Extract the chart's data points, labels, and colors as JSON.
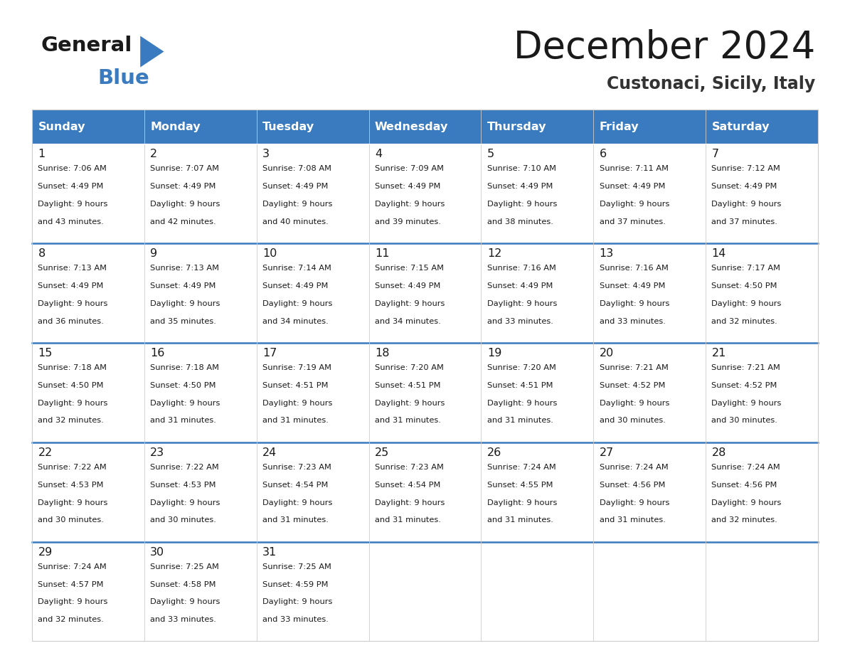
{
  "title": "December 2024",
  "subtitle": "Custonaci, Sicily, Italy",
  "header_color": "#3a7bbf",
  "header_text_color": "#ffffff",
  "cell_bg": "#ffffff",
  "cell_bg_alt": "#f5f7fa",
  "separator_color": "#3a7bbf",
  "grid_color": "#cccccc",
  "days_of_week": [
    "Sunday",
    "Monday",
    "Tuesday",
    "Wednesday",
    "Thursday",
    "Friday",
    "Saturday"
  ],
  "calendar_data": [
    [
      {
        "day": 1,
        "sunrise": "7:06 AM",
        "sunset": "4:49 PM",
        "daylight_hours": 9,
        "daylight_minutes": 43
      },
      {
        "day": 2,
        "sunrise": "7:07 AM",
        "sunset": "4:49 PM",
        "daylight_hours": 9,
        "daylight_minutes": 42
      },
      {
        "day": 3,
        "sunrise": "7:08 AM",
        "sunset": "4:49 PM",
        "daylight_hours": 9,
        "daylight_minutes": 40
      },
      {
        "day": 4,
        "sunrise": "7:09 AM",
        "sunset": "4:49 PM",
        "daylight_hours": 9,
        "daylight_minutes": 39
      },
      {
        "day": 5,
        "sunrise": "7:10 AM",
        "sunset": "4:49 PM",
        "daylight_hours": 9,
        "daylight_minutes": 38
      },
      {
        "day": 6,
        "sunrise": "7:11 AM",
        "sunset": "4:49 PM",
        "daylight_hours": 9,
        "daylight_minutes": 37
      },
      {
        "day": 7,
        "sunrise": "7:12 AM",
        "sunset": "4:49 PM",
        "daylight_hours": 9,
        "daylight_minutes": 37
      }
    ],
    [
      {
        "day": 8,
        "sunrise": "7:13 AM",
        "sunset": "4:49 PM",
        "daylight_hours": 9,
        "daylight_minutes": 36
      },
      {
        "day": 9,
        "sunrise": "7:13 AM",
        "sunset": "4:49 PM",
        "daylight_hours": 9,
        "daylight_minutes": 35
      },
      {
        "day": 10,
        "sunrise": "7:14 AM",
        "sunset": "4:49 PM",
        "daylight_hours": 9,
        "daylight_minutes": 34
      },
      {
        "day": 11,
        "sunrise": "7:15 AM",
        "sunset": "4:49 PM",
        "daylight_hours": 9,
        "daylight_minutes": 34
      },
      {
        "day": 12,
        "sunrise": "7:16 AM",
        "sunset": "4:49 PM",
        "daylight_hours": 9,
        "daylight_minutes": 33
      },
      {
        "day": 13,
        "sunrise": "7:16 AM",
        "sunset": "4:49 PM",
        "daylight_hours": 9,
        "daylight_minutes": 33
      },
      {
        "day": 14,
        "sunrise": "7:17 AM",
        "sunset": "4:50 PM",
        "daylight_hours": 9,
        "daylight_minutes": 32
      }
    ],
    [
      {
        "day": 15,
        "sunrise": "7:18 AM",
        "sunset": "4:50 PM",
        "daylight_hours": 9,
        "daylight_minutes": 32
      },
      {
        "day": 16,
        "sunrise": "7:18 AM",
        "sunset": "4:50 PM",
        "daylight_hours": 9,
        "daylight_minutes": 31
      },
      {
        "day": 17,
        "sunrise": "7:19 AM",
        "sunset": "4:51 PM",
        "daylight_hours": 9,
        "daylight_minutes": 31
      },
      {
        "day": 18,
        "sunrise": "7:20 AM",
        "sunset": "4:51 PM",
        "daylight_hours": 9,
        "daylight_minutes": 31
      },
      {
        "day": 19,
        "sunrise": "7:20 AM",
        "sunset": "4:51 PM",
        "daylight_hours": 9,
        "daylight_minutes": 31
      },
      {
        "day": 20,
        "sunrise": "7:21 AM",
        "sunset": "4:52 PM",
        "daylight_hours": 9,
        "daylight_minutes": 30
      },
      {
        "day": 21,
        "sunrise": "7:21 AM",
        "sunset": "4:52 PM",
        "daylight_hours": 9,
        "daylight_minutes": 30
      }
    ],
    [
      {
        "day": 22,
        "sunrise": "7:22 AM",
        "sunset": "4:53 PM",
        "daylight_hours": 9,
        "daylight_minutes": 30
      },
      {
        "day": 23,
        "sunrise": "7:22 AM",
        "sunset": "4:53 PM",
        "daylight_hours": 9,
        "daylight_minutes": 30
      },
      {
        "day": 24,
        "sunrise": "7:23 AM",
        "sunset": "4:54 PM",
        "daylight_hours": 9,
        "daylight_minutes": 31
      },
      {
        "day": 25,
        "sunrise": "7:23 AM",
        "sunset": "4:54 PM",
        "daylight_hours": 9,
        "daylight_minutes": 31
      },
      {
        "day": 26,
        "sunrise": "7:24 AM",
        "sunset": "4:55 PM",
        "daylight_hours": 9,
        "daylight_minutes": 31
      },
      {
        "day": 27,
        "sunrise": "7:24 AM",
        "sunset": "4:56 PM",
        "daylight_hours": 9,
        "daylight_minutes": 31
      },
      {
        "day": 28,
        "sunrise": "7:24 AM",
        "sunset": "4:56 PM",
        "daylight_hours": 9,
        "daylight_minutes": 32
      }
    ],
    [
      {
        "day": 29,
        "sunrise": "7:24 AM",
        "sunset": "4:57 PM",
        "daylight_hours": 9,
        "daylight_minutes": 32
      },
      {
        "day": 30,
        "sunrise": "7:25 AM",
        "sunset": "4:58 PM",
        "daylight_hours": 9,
        "daylight_minutes": 33
      },
      {
        "day": 31,
        "sunrise": "7:25 AM",
        "sunset": "4:59 PM",
        "daylight_hours": 9,
        "daylight_minutes": 33
      },
      null,
      null,
      null,
      null
    ]
  ],
  "logo_triangle_color": "#3a7bbf",
  "logo_general_color": "#1a1a1a",
  "logo_blue_color": "#3a7bbf"
}
